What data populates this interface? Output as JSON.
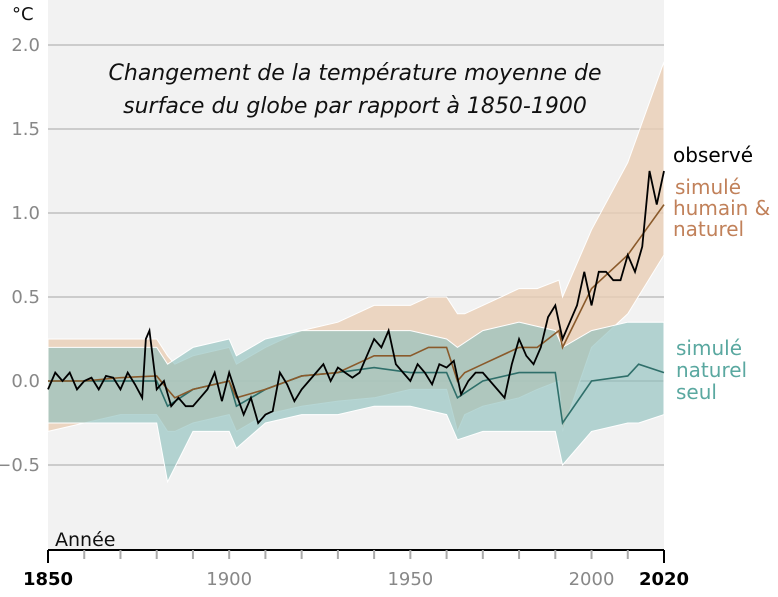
{
  "chart_data": {
    "type": "area",
    "title": [
      "Changement de la température moyenne de",
      "surface du globe par rapport à 1850-1900"
    ],
    "ylabel": "°C",
    "xlabel": "Année",
    "xlim": [
      1850,
      2020
    ],
    "ylim": [
      -1.0,
      2.0
    ],
    "grid": true,
    "yticks": [
      2.0,
      1.5,
      1.0,
      0.5,
      0.0,
      -0.5
    ],
    "ytick_labels": [
      "2.0",
      "1.5",
      "1.0",
      "0.5",
      "0.0",
      "−0.5"
    ],
    "xtick_labels": [
      {
        "value": 1850,
        "label": "1850",
        "bold": true
      },
      {
        "value": 1900,
        "label": "1900",
        "bold": false
      },
      {
        "value": 1950,
        "label": "1950",
        "bold": false
      },
      {
        "value": 2000,
        "label": "2000",
        "bold": false
      },
      {
        "value": 2020,
        "label": "2020",
        "bold": true
      }
    ],
    "colors": {
      "observed": "#000000",
      "human_natural_line": "#8a5a2b",
      "human_natural_band": "#e9cdb4",
      "human_natural_label": "#c1815a",
      "natural_line": "#2f6f6a",
      "natural_band": "#8fc0bd",
      "natural_label": "#5aa8a0"
    },
    "series": [
      {
        "name": "observé",
        "x": [
          1850,
          1852,
          1854,
          1856,
          1858,
          1860,
          1862,
          1864,
          1866,
          1868,
          1870,
          1872,
          1874,
          1876,
          1877,
          1878,
          1880,
          1882,
          1884,
          1886,
          1888,
          1890,
          1892,
          1894,
          1896,
          1898,
          1900,
          1902,
          1904,
          1906,
          1908,
          1910,
          1912,
          1914,
          1916,
          1918,
          1920,
          1922,
          1924,
          1926,
          1928,
          1930,
          1932,
          1934,
          1936,
          1938,
          1940,
          1942,
          1944,
          1946,
          1948,
          1950,
          1952,
          1954,
          1956,
          1958,
          1960,
          1962,
          1964,
          1966,
          1968,
          1970,
          1972,
          1974,
          1976,
          1978,
          1980,
          1982,
          1984,
          1986,
          1988,
          1990,
          1992,
          1994,
          1996,
          1998,
          2000,
          2002,
          2004,
          2006,
          2008,
          2010,
          2012,
          2014,
          2016,
          2018,
          2020
        ],
        "y": [
          -0.05,
          0.05,
          0.0,
          0.05,
          -0.05,
          0.0,
          0.02,
          -0.05,
          0.03,
          0.02,
          -0.05,
          0.05,
          -0.02,
          -0.1,
          0.25,
          0.3,
          -0.05,
          0.0,
          -0.15,
          -0.1,
          -0.15,
          -0.15,
          -0.1,
          -0.05,
          0.05,
          -0.12,
          0.05,
          -0.08,
          -0.2,
          -0.1,
          -0.25,
          -0.2,
          -0.18,
          0.05,
          -0.02,
          -0.12,
          -0.05,
          0.0,
          0.05,
          0.1,
          0.0,
          0.08,
          0.05,
          0.02,
          0.05,
          0.15,
          0.25,
          0.2,
          0.3,
          0.1,
          0.05,
          0.0,
          0.1,
          0.05,
          -0.02,
          0.1,
          0.08,
          0.12,
          -0.08,
          0.0,
          0.05,
          0.05,
          0.0,
          -0.05,
          -0.1,
          0.1,
          0.25,
          0.15,
          0.1,
          0.2,
          0.38,
          0.45,
          0.25,
          0.35,
          0.45,
          0.65,
          0.45,
          0.65,
          0.65,
          0.6,
          0.6,
          0.75,
          0.65,
          0.8,
          1.25,
          1.05,
          1.25
        ]
      },
      {
        "name": "simulé humain & naturel",
        "x": [
          1850,
          1860,
          1870,
          1880,
          1883,
          1885,
          1890,
          1900,
          1902,
          1910,
          1920,
          1930,
          1940,
          1950,
          1955,
          1960,
          1963,
          1965,
          1970,
          1980,
          1985,
          1991,
          1992,
          2000,
          2010,
          2020
        ],
        "y": [
          0.0,
          0.0,
          0.02,
          0.03,
          -0.05,
          -0.1,
          -0.05,
          0.0,
          -0.1,
          -0.05,
          0.03,
          0.05,
          0.15,
          0.15,
          0.2,
          0.2,
          0.0,
          0.05,
          0.1,
          0.2,
          0.2,
          0.3,
          0.2,
          0.55,
          0.75,
          1.05
        ],
        "low": [
          -0.3,
          -0.25,
          -0.2,
          -0.2,
          -0.3,
          -0.3,
          -0.25,
          -0.2,
          -0.3,
          -0.2,
          -0.15,
          -0.12,
          -0.1,
          -0.05,
          -0.05,
          -0.05,
          -0.3,
          -0.2,
          -0.15,
          -0.1,
          -0.05,
          0.0,
          -0.3,
          0.2,
          0.4,
          0.75
        ],
        "high": [
          0.25,
          0.25,
          0.25,
          0.25,
          0.15,
          0.1,
          0.15,
          0.2,
          0.1,
          0.2,
          0.3,
          0.35,
          0.45,
          0.45,
          0.5,
          0.5,
          0.4,
          0.4,
          0.45,
          0.55,
          0.55,
          0.6,
          0.5,
          0.9,
          1.3,
          1.9
        ]
      },
      {
        "name": "simulé naturel seul",
        "x": [
          1850,
          1860,
          1870,
          1880,
          1883,
          1890,
          1900,
          1902,
          1910,
          1920,
          1930,
          1940,
          1950,
          1960,
          1963,
          1970,
          1980,
          1990,
          1992,
          2000,
          2010,
          2013,
          2020
        ],
        "y": [
          0.0,
          0.0,
          0.0,
          0.0,
          -0.15,
          -0.05,
          0.0,
          -0.15,
          -0.05,
          0.03,
          0.05,
          0.08,
          0.05,
          0.05,
          -0.1,
          0.0,
          0.05,
          0.05,
          -0.25,
          0.0,
          0.03,
          0.1,
          0.05
        ],
        "low": [
          -0.25,
          -0.25,
          -0.25,
          -0.25,
          -0.6,
          -0.3,
          -0.3,
          -0.4,
          -0.25,
          -0.2,
          -0.2,
          -0.15,
          -0.15,
          -0.2,
          -0.35,
          -0.3,
          -0.3,
          -0.3,
          -0.5,
          -0.3,
          -0.25,
          -0.25,
          -0.2
        ],
        "high": [
          0.2,
          0.2,
          0.2,
          0.2,
          0.1,
          0.2,
          0.25,
          0.15,
          0.25,
          0.3,
          0.3,
          0.3,
          0.3,
          0.25,
          0.2,
          0.3,
          0.35,
          0.3,
          0.2,
          0.3,
          0.35,
          0.35,
          0.35
        ]
      }
    ],
    "labels": {
      "observed": "observé",
      "human_natural": [
        "simulé",
        "humain &",
        "naturel"
      ],
      "natural": [
        "simulé",
        "naturel",
        "seul"
      ]
    }
  }
}
